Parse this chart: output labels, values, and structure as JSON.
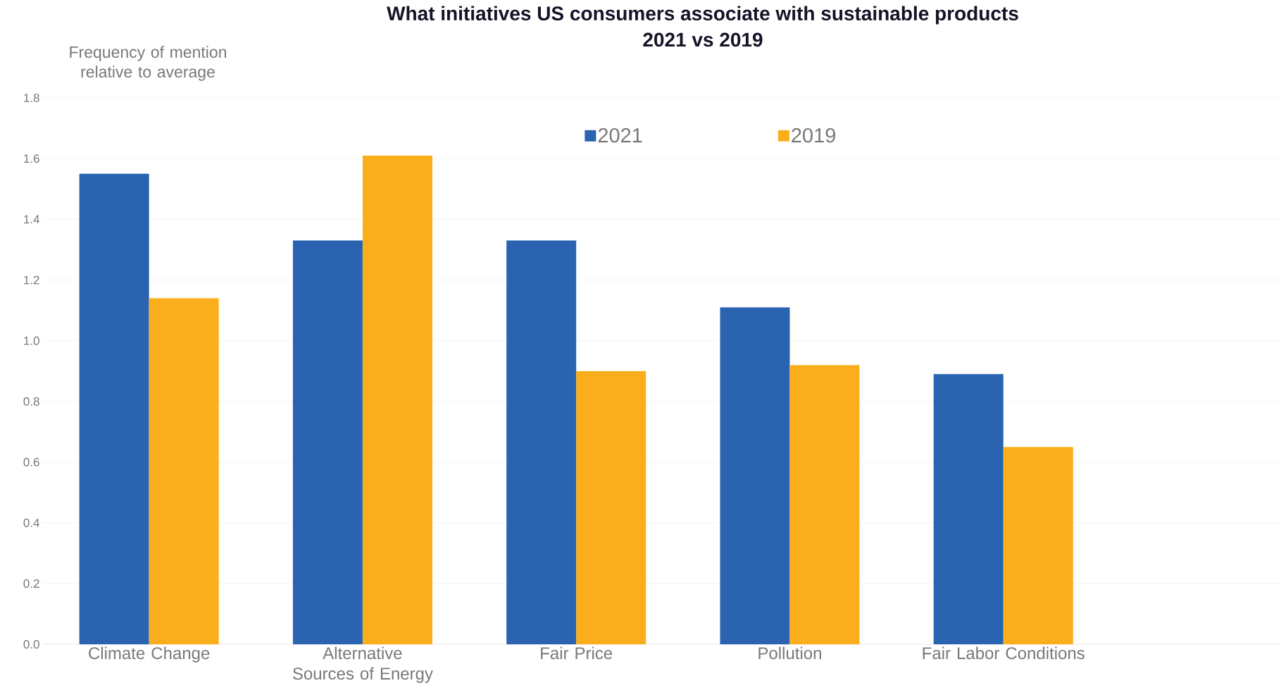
{
  "chart_data": {
    "type": "bar",
    "title": "What initiatives US consumers associate with sustainable products",
    "subtitle": "2021 vs 2019",
    "ylabel": "Frequency of mention relative to average",
    "categories": [
      "Climate Change",
      "Alternative Sources of Energy",
      "Fair Price",
      "Pollution",
      "Fair Labor Conditions"
    ],
    "series": [
      {
        "name": "2021",
        "color": "#2a63b0",
        "values": [
          1.55,
          1.33,
          1.33,
          1.11,
          0.89
        ]
      },
      {
        "name": "2019",
        "color": "#fbae1b",
        "values": [
          1.14,
          1.61,
          0.9,
          0.92,
          0.65
        ]
      }
    ],
    "ylim": [
      0,
      1.8
    ],
    "yticks": [
      {
        "value": 0,
        "label": "0.0"
      },
      {
        "value": 0.2,
        "label": "0.2"
      },
      {
        "value": 0.4,
        "label": "0.4"
      },
      {
        "value": 0.6,
        "label": "0.6"
      },
      {
        "value": 0.8,
        "label": "0.8"
      },
      {
        "value": 1.0,
        "label": "1.0"
      },
      {
        "value": 1.2,
        "label": "1.2"
      },
      {
        "value": 1.4,
        "label": "1.4"
      },
      {
        "value": 1.6,
        "label": "1.6"
      },
      {
        "value": 1.8,
        "label": "1.8"
      }
    ],
    "grid": "y",
    "legend": "top"
  }
}
